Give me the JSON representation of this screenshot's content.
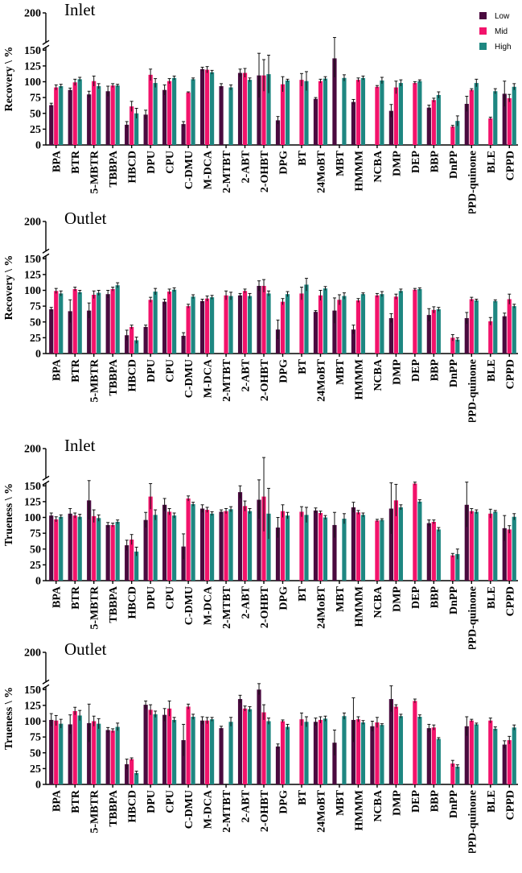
{
  "legend": [
    {
      "label": "Low",
      "color": "#4a0a3f"
    },
    {
      "label": "Mid",
      "color": "#f2136b"
    },
    {
      "label": "High",
      "color": "#1e8781"
    }
  ],
  "chart_data": [
    {
      "type": "bar",
      "title": "Inlet",
      "ylabel": "Recovery \\ %",
      "yticks": [
        "0",
        "25",
        "50",
        "75",
        "100",
        "125",
        "150",
        "200"
      ],
      "ylim": [
        0,
        200
      ],
      "axis_break": [
        150,
        200
      ],
      "categories": [
        "BPA",
        "BTR",
        "5-MBTR",
        "TBBPA",
        "HBCD",
        "DPU",
        "CPU",
        "C-DMU",
        "M-DCA",
        "2-MTBT",
        "2-ABT",
        "2-OHBT",
        "DPG",
        "BT",
        "24MoBT",
        "MBT",
        "HMMM",
        "NCBA",
        "DMP",
        "DEP",
        "BBP",
        "DnPP",
        "6PPD-quinone",
        "BLE",
        "CPPD"
      ],
      "series": [
        {
          "name": "Low",
          "values": [
            63,
            87,
            80,
            85,
            32,
            48,
            87,
            33,
            120,
            93,
            114,
            110,
            39,
            null,
            73,
            137,
            68,
            null,
            54,
            null,
            59,
            null,
            65,
            null,
            81
          ],
          "errors": [
            3,
            3,
            5,
            8,
            5,
            7,
            8,
            4,
            3,
            4,
            6,
            35,
            6,
            null,
            2,
            30,
            4,
            null,
            10,
            null,
            4,
            null,
            12,
            null,
            20
          ]
        },
        {
          "name": "Mid",
          "values": [
            91,
            99,
            101,
            94,
            61,
            111,
            101,
            83,
            119,
            null,
            114,
            110,
            96,
            103,
            101,
            null,
            103,
            92,
            91,
            98,
            71,
            29,
            87,
            42,
            74
          ],
          "errors": [
            4,
            5,
            8,
            3,
            8,
            9,
            4,
            1,
            5,
            null,
            7,
            25,
            12,
            10,
            3,
            null,
            3,
            2,
            10,
            2,
            3,
            2,
            2,
            2,
            6
          ]
        },
        {
          "name": "High",
          "values": [
            93,
            104,
            93,
            94,
            50,
            98,
            106,
            104,
            115,
            91,
            103,
            112,
            102,
            101,
            105,
            106,
            106,
            102,
            98,
            101,
            79,
            38,
            98,
            85,
            92
          ],
          "errors": [
            3,
            3,
            4,
            2,
            8,
            7,
            3,
            2,
            3,
            4,
            3,
            30,
            2,
            15,
            3,
            5,
            3,
            5,
            5,
            2,
            5,
            8,
            6,
            4,
            5
          ]
        }
      ]
    },
    {
      "type": "bar",
      "title": "Outlet",
      "ylabel": "Recovery \\ %",
      "yticks": [
        "0",
        "25",
        "50",
        "75",
        "100",
        "125",
        "150",
        "200"
      ],
      "ylim": [
        0,
        200
      ],
      "axis_break": [
        150,
        200
      ],
      "categories": [
        "BPA",
        "BTR",
        "5-MBTR",
        "TBBPA",
        "HBCD",
        "DPU",
        "CPU",
        "C-DMU",
        "M-DCA",
        "2-MTBT",
        "2-ABT",
        "2-OHBT",
        "DPG",
        "BT",
        "24MoBT",
        "MBT",
        "HMMM",
        "NCBA",
        "DMP",
        "DEP",
        "BBP",
        "DnPP",
        "6PPD-quinone",
        "BLE",
        "CPPD"
      ],
      "series": [
        {
          "name": "Low",
          "values": [
            70,
            67,
            68,
            94,
            29,
            42,
            82,
            28,
            83,
            null,
            92,
            107,
            38,
            null,
            66,
            68,
            38,
            null,
            56,
            null,
            61,
            null,
            56,
            null,
            59
          ],
          "errors": [
            3,
            18,
            12,
            6,
            8,
            3,
            4,
            5,
            3,
            null,
            3,
            8,
            15,
            null,
            2,
            20,
            7,
            null,
            7,
            null,
            10,
            null,
            9,
            null,
            5
          ]
        },
        {
          "name": "Mid",
          "values": [
            99,
            102,
            93,
            102,
            42,
            85,
            98,
            75,
            87,
            92,
            99,
            107,
            82,
            95,
            92,
            85,
            84,
            92,
            90,
            101,
            69,
            25,
            86,
            51,
            86
          ],
          "errors": [
            4,
            3,
            6,
            3,
            3,
            4,
            4,
            3,
            4,
            7,
            3,
            10,
            5,
            10,
            8,
            8,
            3,
            3,
            4,
            2,
            5,
            5,
            3,
            6,
            8
          ]
        },
        {
          "name": "High",
          "values": [
            95,
            97,
            96,
            108,
            21,
            98,
            101,
            90,
            89,
            91,
            91,
            95,
            94,
            109,
            103,
            91,
            94,
            94,
            99,
            102,
            70,
            22,
            84,
            83,
            75
          ],
          "errors": [
            4,
            3,
            4,
            4,
            5,
            5,
            3,
            3,
            3,
            6,
            4,
            4,
            4,
            10,
            3,
            5,
            2,
            4,
            3,
            2,
            3,
            3,
            2,
            2,
            3
          ]
        }
      ]
    },
    {
      "type": "bar",
      "title": "Inlet",
      "ylabel": "Trueness \\ %",
      "yticks": [
        "0",
        "25",
        "50",
        "75",
        "100",
        "125",
        "150",
        "200"
      ],
      "ylim": [
        0,
        200
      ],
      "axis_break": [
        150,
        200
      ],
      "categories": [
        "BPA",
        "BTR",
        "5-MBTR",
        "TBBPA",
        "HBCD",
        "DPU",
        "CPU",
        "C-DMU",
        "M-DCA",
        "2-MTBT",
        "2-ABT",
        "2-OHBT",
        "DPG",
        "BT",
        "24MoBT",
        "MBT",
        "HMMM",
        "NCBA",
        "DMP",
        "DEP",
        "BBP",
        "DnPP",
        "6PPD-quinone",
        "BLE",
        "CPPD"
      ],
      "series": [
        {
          "name": "Low",
          "values": [
            103,
            106,
            127,
            88,
            56,
            96,
            120,
            54,
            114,
            109,
            140,
            128,
            84,
            null,
            111,
            88,
            116,
            null,
            114,
            null,
            91,
            null,
            120,
            null,
            83
          ],
          "errors": [
            4,
            8,
            30,
            4,
            8,
            12,
            10,
            20,
            6,
            3,
            10,
            30,
            16,
            null,
            4,
            20,
            8,
            null,
            40,
            null,
            5,
            null,
            35,
            null,
            20
          ]
        },
        {
          "name": "Mid",
          "values": [
            97,
            103,
            102,
            88,
            65,
            133,
            109,
            130,
            112,
            110,
            118,
            133,
            110,
            109,
            107,
            null,
            108,
            95,
            127,
            153,
            93,
            40,
            110,
            106,
            81
          ],
          "errors": [
            4,
            4,
            10,
            3,
            8,
            20,
            5,
            4,
            4,
            4,
            8,
            55,
            10,
            8,
            3,
            null,
            3,
            2,
            25,
            2,
            3,
            3,
            4,
            7,
            6
          ]
        },
        {
          "name": "High",
          "values": [
            101,
            101,
            99,
            93,
            46,
            104,
            103,
            121,
            106,
            113,
            110,
            106,
            103,
            104,
            100,
            98,
            104,
            96,
            116,
            125,
            81,
            42,
            109,
            109,
            101
          ],
          "errors": [
            3,
            4,
            5,
            3,
            7,
            8,
            4,
            3,
            3,
            4,
            4,
            40,
            5,
            12,
            3,
            8,
            3,
            2,
            4,
            3,
            3,
            8,
            3,
            2,
            5
          ]
        }
      ]
    },
    {
      "type": "bar",
      "title": "Outlet",
      "ylabel": "Trueness \\ %",
      "yticks": [
        "0",
        "25",
        "50",
        "75",
        "100",
        "125",
        "150",
        "200"
      ],
      "ylim": [
        0,
        200
      ],
      "axis_break": [
        150,
        200
      ],
      "categories": [
        "BPA",
        "BTR",
        "5-MBTR",
        "TBBPA",
        "HBCD",
        "DPU",
        "CPU",
        "C-DMU",
        "M-DCA",
        "2-MTBT",
        "2-ABT",
        "2-OHBT",
        "DPG",
        "BT",
        "24MoBT",
        "MBT",
        "HMMM",
        "NCBA",
        "DMP",
        "DEP",
        "BBP",
        "DnPP",
        "6PPD-quinone",
        "BLE",
        "CPPD"
      ],
      "series": [
        {
          "name": "Low",
          "values": [
            102,
            95,
            97,
            86,
            32,
            126,
            110,
            70,
            101,
            89,
            135,
            150,
            60,
            null,
            99,
            66,
            102,
            92,
            135,
            null,
            89,
            null,
            92,
            null,
            63
          ],
          "errors": [
            10,
            15,
            30,
            4,
            8,
            6,
            10,
            25,
            6,
            3,
            6,
            8,
            4,
            null,
            6,
            20,
            35,
            8,
            20,
            null,
            6,
            null,
            15,
            null,
            6
          ]
        },
        {
          "name": "Mid",
          "values": [
            101,
            116,
            100,
            85,
            40,
            118,
            120,
            123,
            101,
            null,
            120,
            114,
            100,
            103,
            102,
            null,
            103,
            98,
            123,
            132,
            90,
            33,
            101,
            101,
            70
          ],
          "errors": [
            8,
            6,
            8,
            3,
            2,
            8,
            12,
            4,
            5,
            null,
            4,
            12,
            2,
            10,
            5,
            null,
            4,
            8,
            3,
            3,
            4,
            5,
            2,
            4,
            6
          ]
        },
        {
          "name": "High",
          "values": [
            96,
            109,
            96,
            91,
            18,
            111,
            102,
            107,
            103,
            99,
            119,
            100,
            91,
            99,
            104,
            108,
            98,
            94,
            108,
            107,
            72,
            28,
            95,
            88,
            90
          ],
          "errors": [
            7,
            8,
            8,
            6,
            3,
            5,
            4,
            4,
            3,
            7,
            4,
            5,
            4,
            8,
            4,
            5,
            3,
            2,
            3,
            3,
            2,
            3,
            2,
            3,
            4
          ]
        }
      ]
    }
  ]
}
